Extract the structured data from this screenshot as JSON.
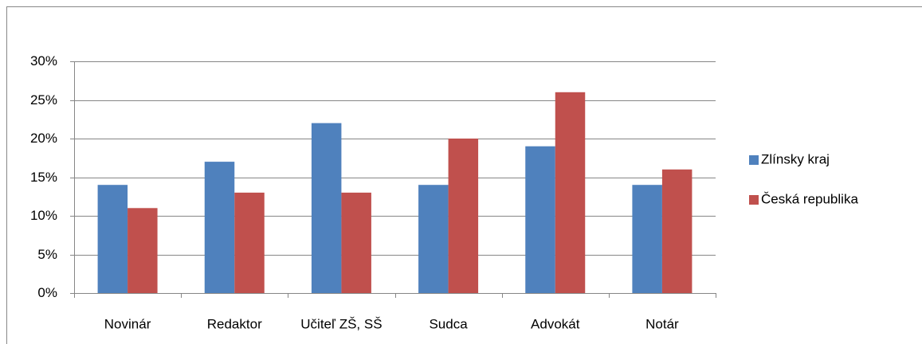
{
  "chart_data": {
    "type": "bar",
    "categories": [
      "Novinár",
      "Redaktor",
      "Učiteľ ZŠ, SŠ",
      "Sudca",
      "Advokát",
      "Notár"
    ],
    "series": [
      {
        "name": "Zlínsky kraj",
        "color": "#4f81bd",
        "values": [
          14,
          17,
          22,
          14,
          19,
          14
        ]
      },
      {
        "name": "Česká republika",
        "color": "#c0504d",
        "values": [
          11,
          13,
          13,
          20,
          26,
          16
        ]
      }
    ],
    "ylim": [
      0,
      30
    ],
    "yticks": [
      {
        "value": 0,
        "label": "0%"
      },
      {
        "value": 5,
        "label": "5%"
      },
      {
        "value": 10,
        "label": "10%"
      },
      {
        "value": 15,
        "label": "15%"
      },
      {
        "value": 20,
        "label": "20%"
      },
      {
        "value": 25,
        "label": "25%"
      },
      {
        "value": 30,
        "label": "30%"
      }
    ],
    "grid": true,
    "legend": "right"
  }
}
